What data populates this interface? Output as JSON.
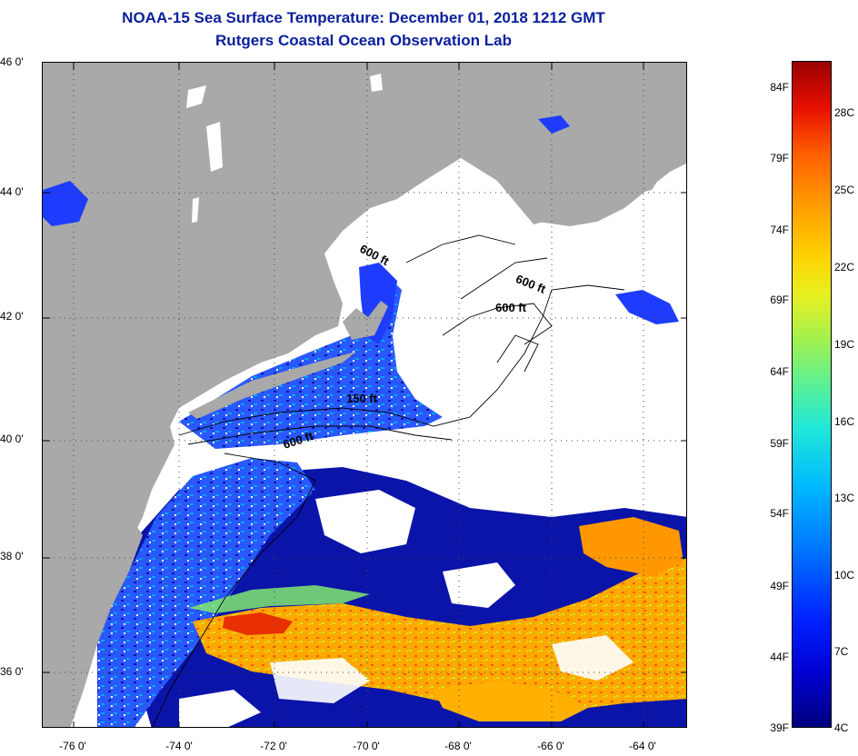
{
  "header": {
    "title": "NOAA-15 Sea Surface Temperature:  December 01, 2018 1212 GMT",
    "subtitle": "Rutgers Coastal Ocean Observation Lab"
  },
  "map": {
    "latitude_labels": [
      "46 0'",
      "44 0'",
      "42 0'",
      "40 0'",
      "38 0'",
      "36 0'"
    ],
    "longitude_labels": [
      "-76 0'",
      "-74 0'",
      "-72 0'",
      "-70 0'",
      "-68 0'",
      "-66 0'",
      "-64 0'"
    ],
    "contour_labels": [
      "600 ft",
      "600 ft",
      "600 ft",
      "150 ft",
      "600 ft"
    ],
    "colors": {
      "land": "#a9a9a9",
      "cloud": "#ffffff",
      "cold_water": "#1e3cff",
      "deep_blue": "#0a14a8",
      "warm_water": "#ffa000"
    }
  },
  "colorbar": {
    "fahrenheit_labels": [
      "84F",
      "79F",
      "74F",
      "69F",
      "64F",
      "59F",
      "54F",
      "49F",
      "44F",
      "39F"
    ],
    "celsius_labels": [
      "28C",
      "25C",
      "22C",
      "19C",
      "16C",
      "13C",
      "10C",
      "7C",
      "4C"
    ]
  }
}
